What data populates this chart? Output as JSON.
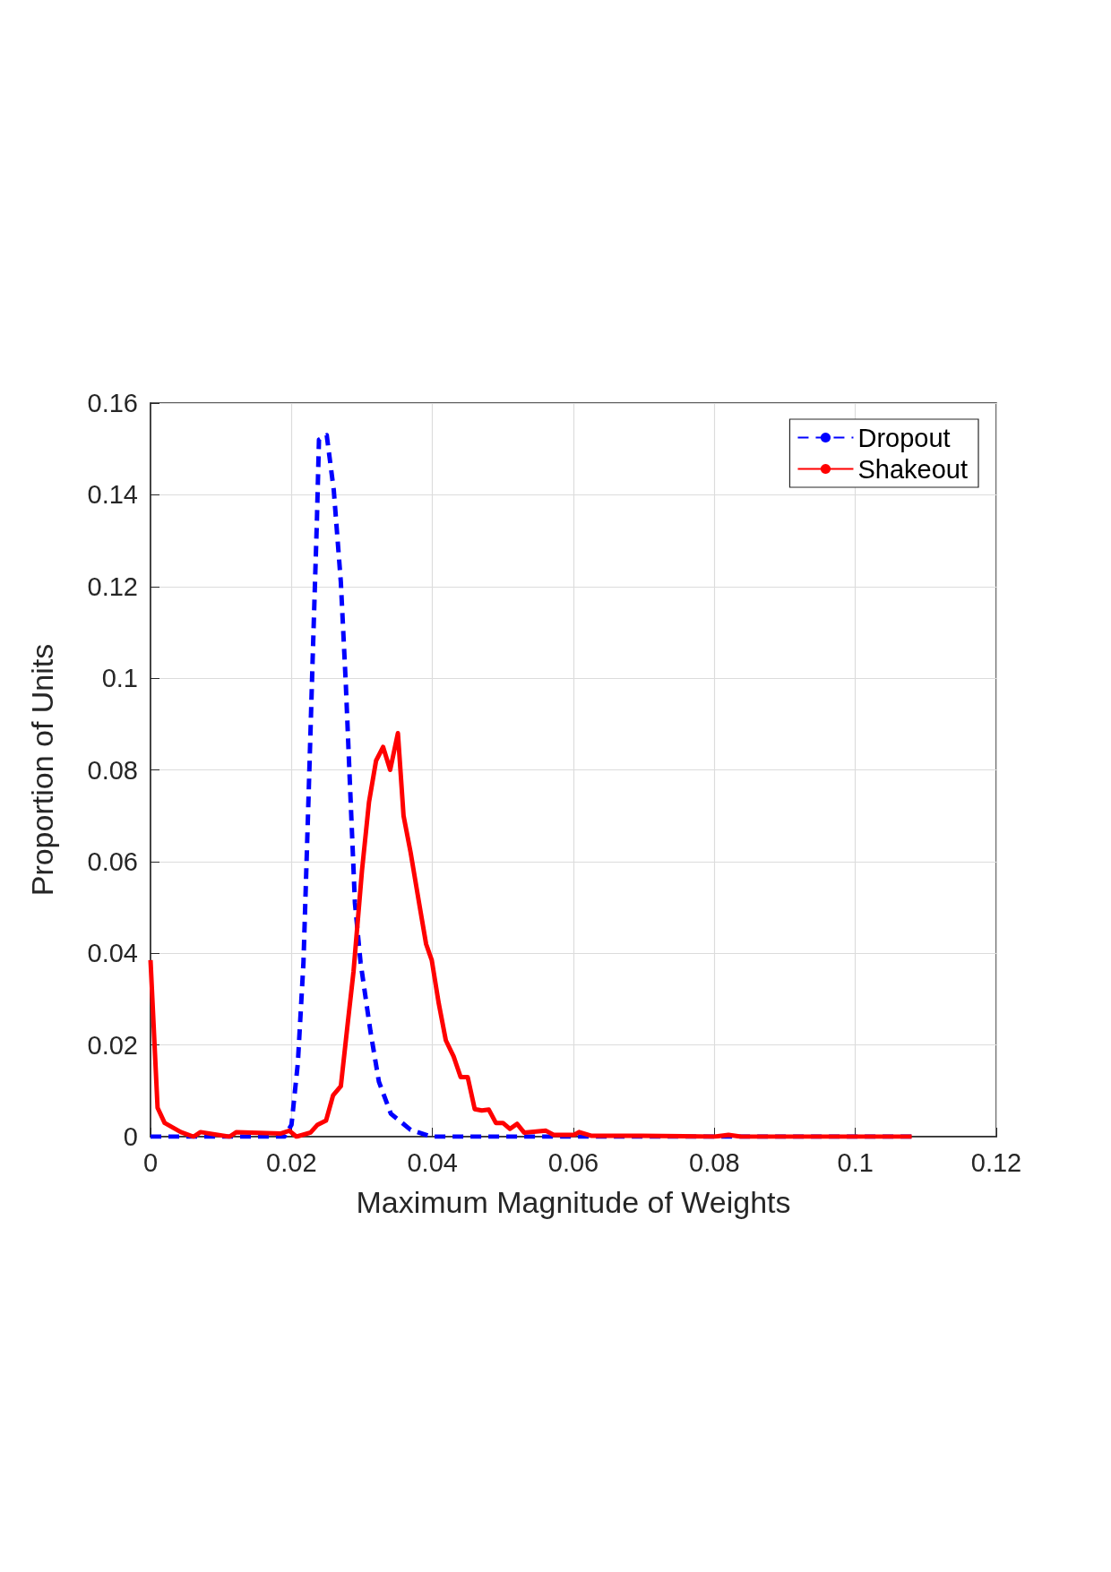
{
  "chart_data": {
    "type": "line",
    "xlabel": "Maximum Magnitude of Weights",
    "ylabel": "Proportion of Units",
    "xlim": [
      0,
      0.12
    ],
    "xticks": [
      0,
      0.02,
      0.04,
      0.06,
      0.08,
      0.1,
      0.12
    ],
    "ylim": [
      0,
      0.16
    ],
    "yticks": [
      0,
      0.02,
      0.04,
      0.06,
      0.08,
      0.1,
      0.12,
      0.14,
      0.16
    ],
    "grid": true,
    "legend": "top right",
    "marker": "none",
    "series": [
      {
        "name": "Dropout",
        "color": "#0000ff",
        "line_style": "dashed",
        "x": [
          0,
          0.019,
          0.02,
          0.0209,
          0.0217,
          0.0224,
          0.023,
          0.0236,
          0.0239,
          0.025,
          0.026,
          0.027,
          0.0277,
          0.0284,
          0.029,
          0.0298,
          0.0312,
          0.0324,
          0.0341,
          0.0369,
          0.0398,
          0.108
        ],
        "values": [
          0,
          0,
          0.0026,
          0.016,
          0.038,
          0.073,
          0.104,
          0.134,
          0.152,
          0.153,
          0.141,
          0.121,
          0.099,
          0.073,
          0.051,
          0.038,
          0.023,
          0.012,
          0.005,
          0.0015,
          0,
          0
        ]
      },
      {
        "name": "Shakeout",
        "color": "#ff0000",
        "line_style": "solid",
        "x": [
          0,
          0.001,
          0.002,
          0.0043,
          0.0061,
          0.0071,
          0.0112,
          0.0122,
          0.0185,
          0.0197,
          0.0207,
          0.0227,
          0.0237,
          0.0249,
          0.0259,
          0.027,
          0.028,
          0.0288,
          0.03,
          0.031,
          0.032,
          0.033,
          0.034,
          0.0351,
          0.0359,
          0.0369,
          0.0381,
          0.0391,
          0.0399,
          0.0409,
          0.0419,
          0.043,
          0.044,
          0.045,
          0.046,
          0.047,
          0.048,
          0.049,
          0.05,
          0.051,
          0.052,
          0.053,
          0.0561,
          0.0572,
          0.0601,
          0.0608,
          0.0625,
          0.0696,
          0.08,
          0.082,
          0.0838,
          0.108
        ],
        "values": [
          0.0385,
          0.0063,
          0.003,
          0.001,
          0,
          0.001,
          0,
          0.001,
          0.0007,
          0.0013,
          0,
          0.0009,
          0.0026,
          0.0035,
          0.009,
          0.011,
          0.025,
          0.036,
          0.058,
          0.073,
          0.082,
          0.085,
          0.08,
          0.088,
          0.07,
          0.062,
          0.051,
          0.042,
          0.0385,
          0.029,
          0.021,
          0.0175,
          0.013,
          0.013,
          0.006,
          0.0057,
          0.0059,
          0.003,
          0.003,
          0.0017,
          0.0028,
          0.0009,
          0.0013,
          0.0004,
          0.0004,
          0.001,
          0.0002,
          0.0002,
          0,
          0.0004,
          0,
          0
        ]
      }
    ]
  }
}
